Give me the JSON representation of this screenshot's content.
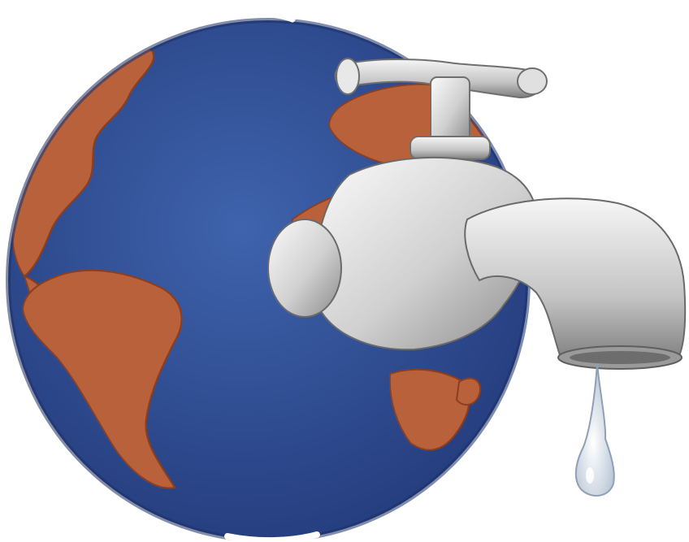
{
  "illustration": {
    "subject": "globe-with-faucet",
    "colors": {
      "ocean": "#34529a",
      "ocean_dark": "#243c7c",
      "land": "#b8613a",
      "land_dark": "#8a3f22",
      "metal_light": "#f2f2f2",
      "metal_mid": "#bdbdbd",
      "metal_dark": "#7c7c7c",
      "water": "#e6ecf4",
      "background": "#ffffff"
    }
  }
}
